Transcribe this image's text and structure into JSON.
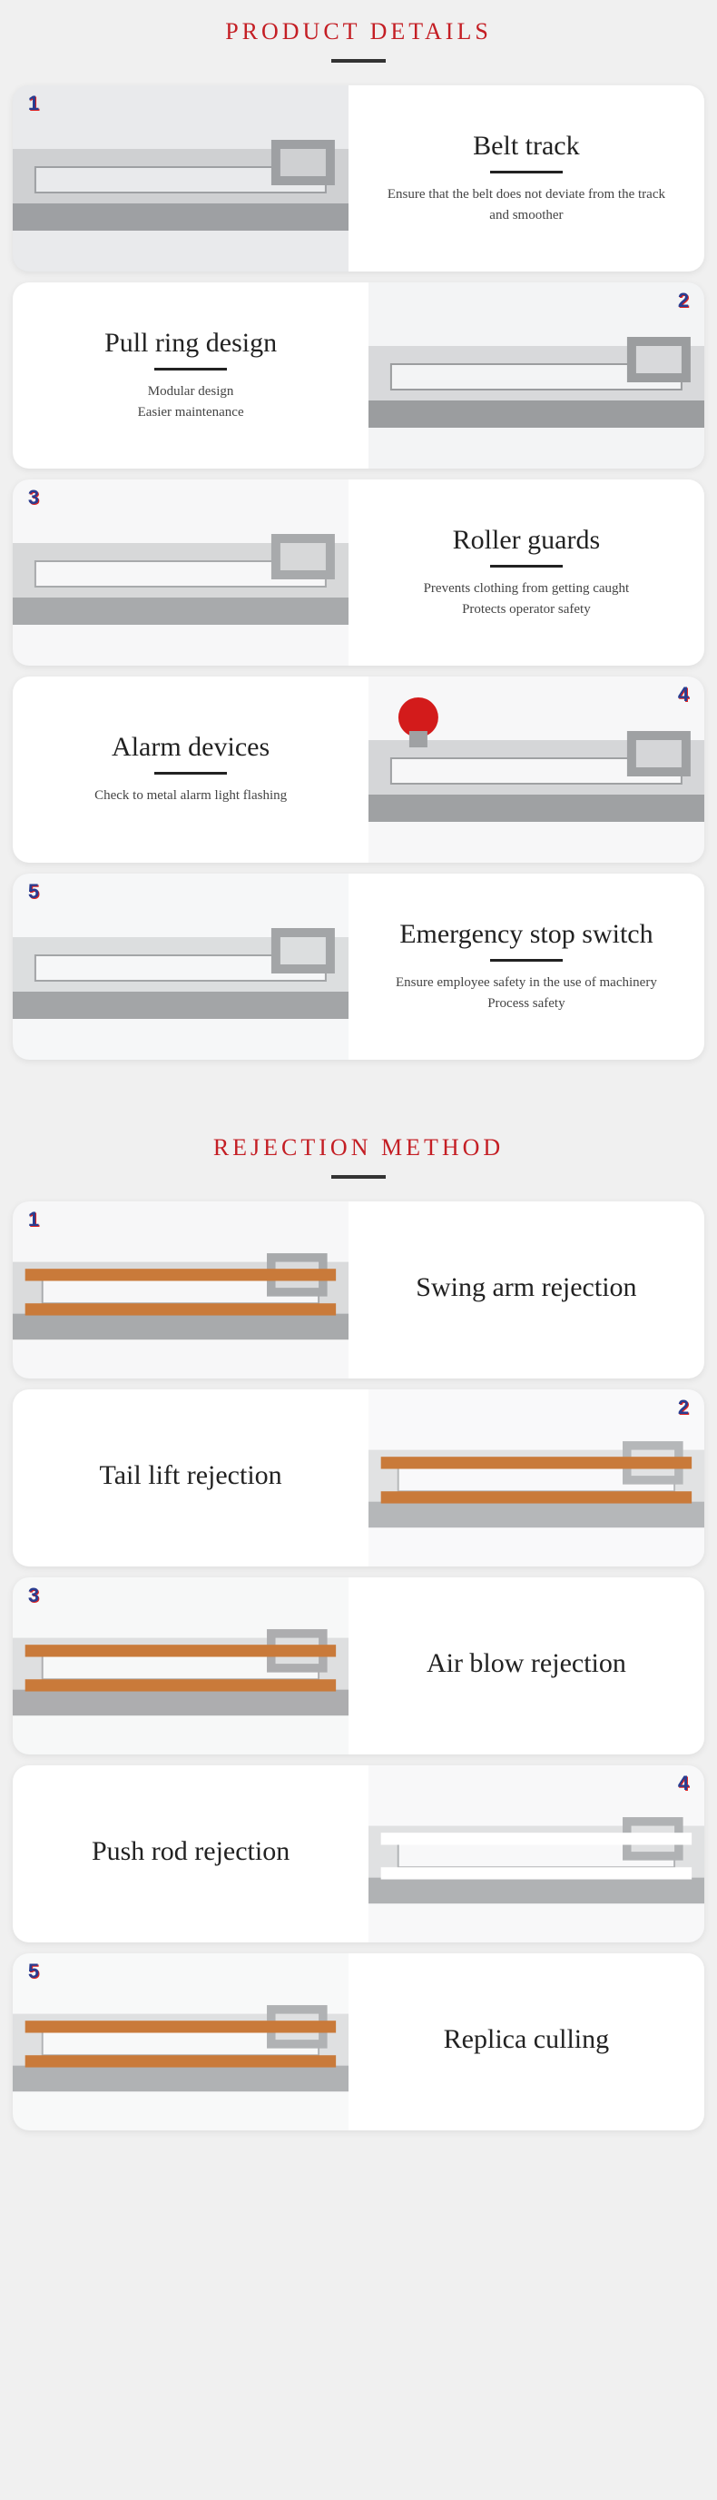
{
  "sections": {
    "details": {
      "title": "PRODUCT DETAILS",
      "title_color": "#c41e24",
      "underline_color": "#333333"
    },
    "rejection": {
      "title": "REJECTION METHOD",
      "title_color": "#c41e24",
      "underline_color": "#333333"
    }
  },
  "details_cards": [
    {
      "num": "1",
      "badge_side": "left",
      "image_side": "right",
      "headline": "Belt track",
      "desc_lines": [
        "Ensure that the belt does not deviate from the track",
        "and smoother"
      ],
      "image_palette": {
        "base": "#cfd0d2",
        "hi": "#e9eaec",
        "lo": "#9ea0a3"
      }
    },
    {
      "num": "2",
      "badge_side": "right",
      "image_side": "left",
      "headline": "Pull ring design",
      "desc_lines": [
        "Modular design",
        "Easier maintenance"
      ],
      "image_palette": {
        "base": "#d8d9db",
        "hi": "#f3f4f5",
        "lo": "#9b9d9f"
      }
    },
    {
      "num": "3",
      "badge_side": "left",
      "image_side": "right",
      "headline": "Roller guards",
      "desc_lines": [
        "Prevents clothing from getting caught",
        "Protects operator safety"
      ],
      "image_palette": {
        "base": "#d7d8d9",
        "hi": "#f7f7f8",
        "lo": "#a8aaac"
      }
    },
    {
      "num": "4",
      "badge_side": "right",
      "image_side": "left",
      "headline": "Alarm devices",
      "desc_lines": [
        "Check to metal alarm light flashing"
      ],
      "image_palette": {
        "base": "#d5d6d8",
        "hi": "#f7f7f8",
        "lo": "#9fa1a3"
      },
      "accent": "#d31b1b"
    },
    {
      "num": "5",
      "badge_side": "left",
      "image_side": "right",
      "headline": "Emergency stop switch",
      "desc_lines": [
        "Ensure employee safety in the use of machinery",
        "Process safety"
      ],
      "image_palette": {
        "base": "#dcdedf",
        "hi": "#f6f7f8",
        "lo": "#a3a5a7"
      }
    }
  ],
  "rejection_cards": [
    {
      "num": "1",
      "badge_side": "left",
      "image_side": "right",
      "headline": "Swing arm rejection",
      "image_palette": {
        "base": "#dadbdc",
        "hi": "#f7f7f8",
        "lo": "#a8aaac",
        "belt": "#c97a3a"
      }
    },
    {
      "num": "2",
      "badge_side": "right",
      "image_side": "left",
      "headline": "Tail lift rejection",
      "image_palette": {
        "base": "#e1e2e3",
        "hi": "#f9f9fa",
        "lo": "#b5b7b9",
        "belt": "#c97a3a"
      }
    },
    {
      "num": "3",
      "badge_side": "left",
      "image_side": "right",
      "headline": "Air blow rejection",
      "image_palette": {
        "base": "#dedfe0",
        "hi": "#f7f8f8",
        "lo": "#adadaf",
        "belt": "#c97a3a"
      }
    },
    {
      "num": "4",
      "badge_side": "right",
      "image_side": "left",
      "headline": "Push rod rejection",
      "image_palette": {
        "base": "#e0e1e2",
        "hi": "#f8f8f9",
        "lo": "#b0b2b4",
        "belt": "#ffffff"
      }
    },
    {
      "num": "5",
      "badge_side": "left",
      "image_side": "right",
      "headline": "Replica culling",
      "image_palette": {
        "base": "#dfe0e1",
        "hi": "#f8f9f9",
        "lo": "#b0b2b4",
        "belt": "#c97a3a"
      }
    }
  ],
  "badge_colors": {
    "front": "#2a3c8f",
    "back": "#d22222"
  },
  "card_bg": "#ffffff",
  "page_bg": "#f0f0f0"
}
